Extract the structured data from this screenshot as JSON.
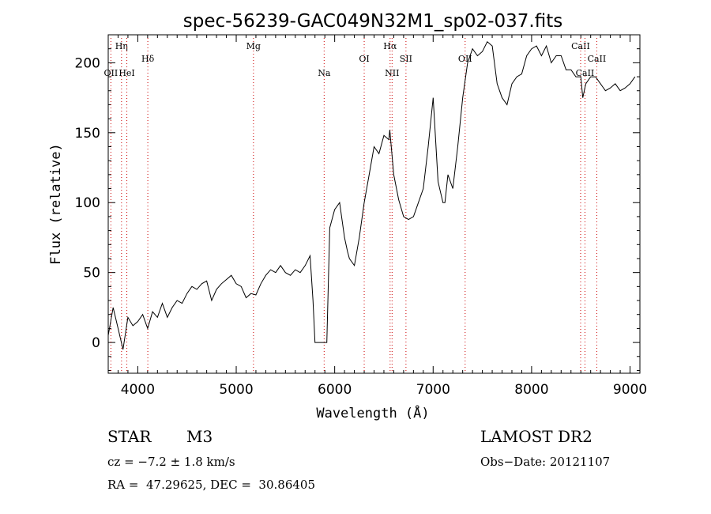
{
  "chart_data": {
    "type": "line",
    "title": "spec-56239-GAC049N32M1_sp02-037.fits",
    "xlabel": "Wavelength (Å)",
    "ylabel": "Flux (relative)",
    "xlim": [
      3700,
      9100
    ],
    "ylim": [
      -22,
      220
    ],
    "xticks": [
      4000,
      5000,
      6000,
      7000,
      8000,
      9000
    ],
    "yticks": [
      0,
      50,
      100,
      150,
      200
    ],
    "grid": false,
    "line_color": "#000000",
    "marker_color": "#cc0000",
    "series": [
      {
        "x": [
          3700,
          3750,
          3800,
          3850,
          3900,
          3950,
          4000,
          4050,
          4100,
          4150,
          4200,
          4250,
          4300,
          4350,
          4400,
          4450,
          4500,
          4550,
          4600,
          4650,
          4700,
          4750,
          4800,
          4850,
          4900,
          4950,
          5000,
          5050,
          5100,
          5150,
          5200,
          5250,
          5300,
          5350,
          5400,
          5450,
          5500,
          5550,
          5600,
          5650,
          5700,
          5750,
          5780,
          5800,
          5830,
          5850,
          5900,
          5920,
          5950,
          6000,
          6050,
          6100,
          6130,
          6150,
          6200,
          6250,
          6300,
          6350,
          6400,
          6450,
          6500,
          6550,
          6560,
          6600,
          6650,
          6700,
          6750,
          6800,
          6850,
          6900,
          6950,
          7000,
          7050,
          7100,
          7120,
          7150,
          7200,
          7250,
          7300,
          7350,
          7400,
          7450,
          7500,
          7550,
          7600,
          7650,
          7700,
          7750,
          7800,
          7850,
          7900,
          7950,
          8000,
          8050,
          8100,
          8150,
          8200,
          8250,
          8300,
          8350,
          8400,
          8450,
          8500,
          8520,
          8550,
          8600,
          8650,
          8700,
          8750,
          8800,
          8850,
          8900,
          8950,
          9000,
          9050
        ],
        "y": [
          5,
          25,
          10,
          -5,
          18,
          12,
          15,
          20,
          10,
          22,
          18,
          28,
          18,
          25,
          30,
          28,
          35,
          40,
          38,
          42,
          44,
          30,
          38,
          42,
          45,
          48,
          42,
          40,
          32,
          35,
          34,
          42,
          48,
          52,
          50,
          55,
          50,
          48,
          52,
          50,
          55,
          62,
          30,
          0,
          0,
          0,
          0,
          0,
          82,
          95,
          100,
          75,
          65,
          60,
          55,
          75,
          100,
          120,
          140,
          135,
          148,
          145,
          152,
          120,
          102,
          90,
          88,
          90,
          100,
          110,
          140,
          175,
          115,
          100,
          100,
          120,
          110,
          140,
          175,
          200,
          210,
          205,
          208,
          215,
          212,
          185,
          175,
          170,
          185,
          190,
          192,
          205,
          210,
          212,
          205,
          212,
          200,
          205,
          205,
          195,
          195,
          190,
          190,
          175,
          185,
          190,
          190,
          185,
          180,
          182,
          185,
          180,
          182,
          185,
          190
        ]
      }
    ],
    "lines": [
      {
        "label": "Hη",
        "x": 3835,
        "row": 1
      },
      {
        "label": "OII",
        "x": 3727,
        "row": 3
      },
      {
        "label": "HeI",
        "x": 3889,
        "row": 3
      },
      {
        "label": "Hδ",
        "x": 4102,
        "row": 2
      },
      {
        "label": "Mg",
        "x": 5175,
        "row": 1
      },
      {
        "label": "Na",
        "x": 5893,
        "row": 3
      },
      {
        "label": "OI",
        "x": 6300,
        "row": 2
      },
      {
        "label": "Hα",
        "x": 6563,
        "row": 1
      },
      {
        "label": "NII",
        "x": 6583,
        "row": 3
      },
      {
        "label": "SII",
        "x": 6724,
        "row": 2
      },
      {
        "label": "OII",
        "x": 7325,
        "row": 2
      },
      {
        "label": "CaII",
        "x": 8498,
        "row": 1
      },
      {
        "label": "CaII",
        "x": 8542,
        "row": 3
      },
      {
        "label": "CaII",
        "x": 8662,
        "row": 2
      }
    ]
  },
  "info": {
    "object_class": "STAR",
    "subclass": "M3",
    "survey": "LAMOST DR2",
    "cz": "cz = −7.2 ± 1.8 km/s",
    "obs_date": "Obs−Date: 20121107",
    "radec": "RA =  47.29625, DEC =  30.86405"
  }
}
